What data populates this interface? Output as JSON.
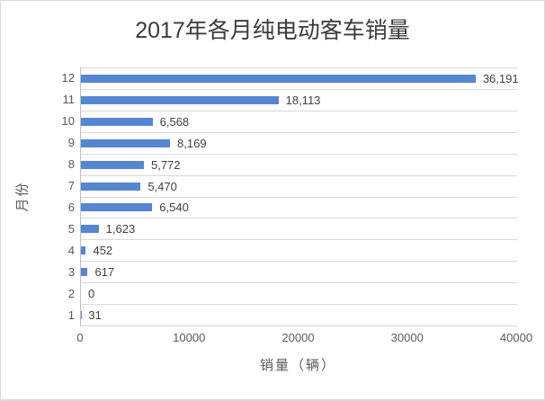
{
  "chart_data": {
    "type": "bar",
    "orientation": "horizontal",
    "title": "2017年各月纯电动客车销量",
    "xlabel": "销量（辆）",
    "ylabel": "月份",
    "categories": [
      "12",
      "11",
      "10",
      "9",
      "8",
      "7",
      "6",
      "5",
      "4",
      "3",
      "2",
      "1"
    ],
    "values": [
      36191,
      18113,
      6568,
      8169,
      5772,
      5470,
      6540,
      1623,
      452,
      617,
      0,
      31
    ],
    "value_labels": [
      "36,191",
      "18,113",
      "6,568",
      "8,169",
      "5,772",
      "5,470",
      "6,540",
      "1,623",
      "452",
      "617",
      "0",
      "31"
    ],
    "xlim": [
      0,
      40000
    ],
    "x_ticks": [
      "0",
      "10000",
      "20000",
      "30000",
      "40000"
    ],
    "grid": "horizontal-category-gridlines-only",
    "legend": "none",
    "colors": {
      "bar": "#5586D2",
      "gridline": "#D9D9D9",
      "axis_line": "#BFBFBF",
      "tick_text": "#595959",
      "data_label_text": "#404040",
      "title_text": "#3B3B3B",
      "background": "#FFFFFF",
      "border": "#D9D9D9"
    }
  }
}
